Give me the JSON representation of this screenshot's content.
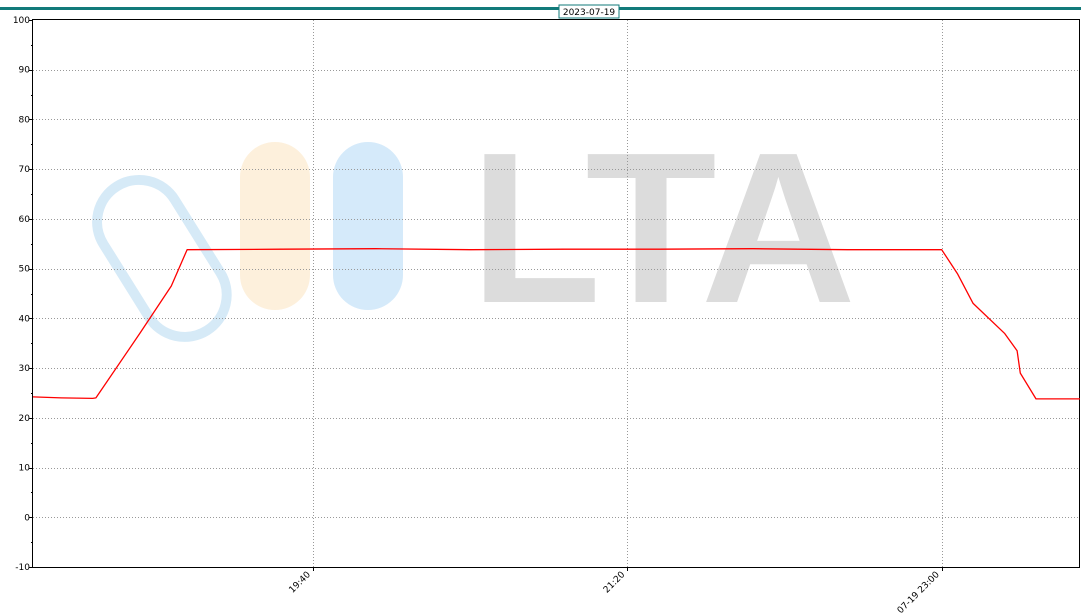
{
  "chart_data": {
    "type": "line",
    "title": "2023-07-19",
    "ylim": [
      -10,
      100
    ],
    "yticks": [
      -10,
      0,
      10,
      20,
      30,
      40,
      50,
      60,
      70,
      80,
      90,
      100
    ],
    "ytick_labels": [
      "-10",
      "0",
      "10",
      "20",
      "30",
      "40",
      "50",
      "60",
      "70",
      "80",
      "90",
      "100"
    ],
    "xlim": [
      "2023-07-19 18:11",
      "2023-07-19 23:44"
    ],
    "xticks": [
      "2023-07-19 19:40",
      "2023-07-19 21:20",
      "2023-07-19 23:00"
    ],
    "xtick_labels": [
      "19:40",
      "21:20",
      "07-19 23:00"
    ],
    "grid": true,
    "watermark": "LTA",
    "colors": {
      "series": "#ff0000",
      "frame_top": "#127a7a",
      "grid": "#999999"
    },
    "series": [
      {
        "x": [
          "2023-07-19 18:11",
          "2023-07-19 18:20",
          "2023-07-19 18:30",
          "2023-07-19 18:31",
          "2023-07-19 18:45",
          "2023-07-19 18:55",
          "2023-07-19 19:00",
          "2023-07-19 19:30",
          "2023-07-19 20:00",
          "2023-07-19 20:30",
          "2023-07-19 21:00",
          "2023-07-19 21:30",
          "2023-07-19 22:00",
          "2023-07-19 22:30",
          "2023-07-19 23:00",
          "2023-07-19 23:05",
          "2023-07-19 23:10",
          "2023-07-19 23:20",
          "2023-07-19 23:24",
          "2023-07-19 23:25",
          "2023-07-19 23:30",
          "2023-07-19 23:44"
        ],
        "values": [
          24.2,
          24.0,
          23.9,
          24.0,
          37.0,
          46.5,
          53.8,
          53.9,
          54.0,
          53.8,
          53.9,
          53.9,
          54.0,
          53.8,
          53.8,
          49.0,
          43.0,
          37.0,
          33.5,
          29.0,
          23.8,
          23.8
        ]
      }
    ]
  }
}
